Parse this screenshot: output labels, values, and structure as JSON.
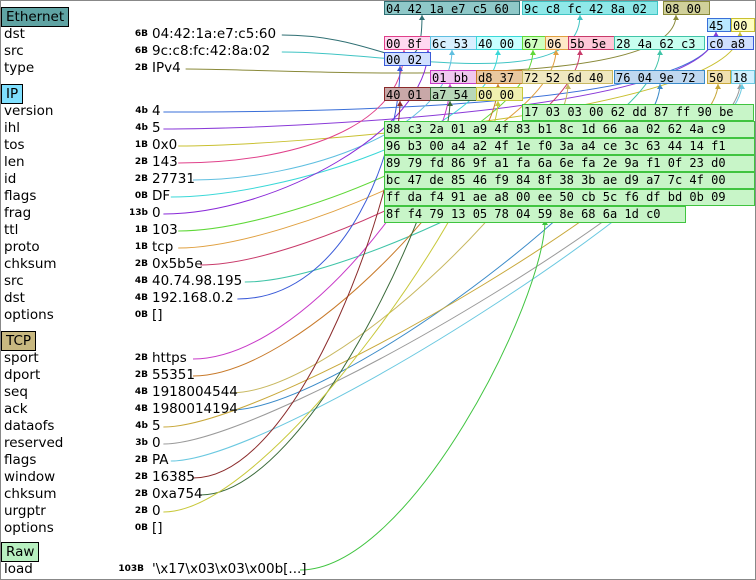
{
  "layers": [
    {
      "name": "Ethernet",
      "color": "#5fa3a3",
      "fields": [
        {
          "name": "dst",
          "size": "6B",
          "value": "04:42:1a:e7:c5:60",
          "color": "#2f6f73",
          "hex": "04 42 1a e7 c5 60"
        },
        {
          "name": "src",
          "size": "6B",
          "value": "9c:c8:fc:42:8a:02",
          "color": "#40c4c4",
          "hex": "9c c8 fc 42 8a 02"
        },
        {
          "name": "type",
          "size": "2B",
          "value": "IPv4",
          "color": "#8a8a3a",
          "hex": "08 00"
        }
      ]
    },
    {
      "name": "IP",
      "color": "#7fe0ff",
      "fields": [
        {
          "name": "version",
          "size": "4b",
          "value": "4",
          "color": "#3a6fd8",
          "hex": "45"
        },
        {
          "name": "ihl",
          "size": "4b",
          "value": "5",
          "color": "#8a3ad8",
          "hex": ""
        },
        {
          "name": "tos",
          "size": "1B",
          "value": "0x0",
          "color": "#c9c030",
          "hex": "00"
        },
        {
          "name": "len",
          "size": "2B",
          "value": "143",
          "color": "#e0408a",
          "hex": "00 8f"
        },
        {
          "name": "id",
          "size": "2B",
          "value": "27731",
          "color": "#5fbfe0",
          "hex": "6c 53"
        },
        {
          "name": "flags",
          "size": "0B",
          "value": "DF",
          "color": "#3ad8d8",
          "hex": "40 00"
        },
        {
          "name": "frag",
          "size": "13b",
          "value": "0",
          "color": "#8a2ad8",
          "hex": ""
        },
        {
          "name": "ttl",
          "size": "1B",
          "value": "103",
          "color": "#5fd838",
          "hex": "67"
        },
        {
          "name": "proto",
          "size": "1B",
          "value": "tcp",
          "color": "#e0a040",
          "hex": "06"
        },
        {
          "name": "chksum",
          "size": "2B",
          "value": "0x5b5e",
          "color": "#c83a6a",
          "hex": "5b 5e"
        },
        {
          "name": "src",
          "size": "4B",
          "value": "40.74.98.195",
          "color": "#40c4a8",
          "hex": "28 4a 62 c3"
        },
        {
          "name": "dst",
          "size": "4B",
          "value": "192.168.0.2",
          "color": "#3a5ad8",
          "hex": "c0 a8 00 02"
        },
        {
          "name": "options",
          "size": "0B",
          "value": "[]",
          "color": "#000000",
          "hex": ""
        }
      ]
    },
    {
      "name": "TCP",
      "color": "#c8b880",
      "fields": [
        {
          "name": "sport",
          "size": "2B",
          "value": "https",
          "color": "#c83ac8",
          "hex": "01 bb"
        },
        {
          "name": "dport",
          "size": "2B",
          "value": "55351",
          "color": "#c87a2a",
          "hex": "d8 37"
        },
        {
          "name": "seq",
          "size": "4B",
          "value": "1918004544",
          "color": "#c8b860",
          "hex": "72 52 6d 40"
        },
        {
          "name": "ack",
          "size": "4B",
          "value": "1980014194",
          "color": "#3a8ac8",
          "hex": "76 04 9e 72"
        },
        {
          "name": "dataofs",
          "size": "4b",
          "value": "5",
          "color": "#c8a83a",
          "hex": "50"
        },
        {
          "name": "reserved",
          "size": "3b",
          "value": "0",
          "color": "#9a9a9a",
          "hex": ""
        },
        {
          "name": "flags",
          "size": "2B",
          "value": "PA",
          "color": "#6ac8e0",
          "hex": "18"
        },
        {
          "name": "window",
          "size": "2B",
          "value": "16385",
          "color": "#8a2a2a",
          "hex": "40 01"
        },
        {
          "name": "chksum",
          "size": "2B",
          "value": "0xa754",
          "color": "#3a6a3a",
          "hex": "a7 54"
        },
        {
          "name": "urgptr",
          "size": "2B",
          "value": "0",
          "color": "#c8c83a",
          "hex": "00 00"
        },
        {
          "name": "options",
          "size": "0B",
          "value": "[]",
          "color": "#000000",
          "hex": ""
        }
      ]
    },
    {
      "name": "Raw",
      "color": "#b8f0c0",
      "fields": [
        {
          "name": "load",
          "size": "103B",
          "value": "'\\x17\\x03\\x03\\x00b[...]",
          "color": "#40c440",
          "hex": ""
        }
      ]
    }
  ],
  "hex": {
    "row0": [
      "04 42 1a e7 c5 60",
      "9c c8 fc 42 8a 02",
      "08 00"
    ],
    "row1": [
      "45",
      "00"
    ],
    "row2": [
      "00 8f",
      "6c 53",
      "40 00",
      "67",
      "06",
      "5b 5e",
      "28 4a 62 c3",
      "c0 a8"
    ],
    "row3": [
      "00 02"
    ],
    "row4": [
      "01 bb",
      "d8 37",
      "72 52 6d 40",
      "76 04 9e 72",
      "50",
      "18"
    ],
    "row5": [
      "40 01",
      "a7 54",
      "00 00"
    ],
    "payload": [
      "17 03 03 00 62 dd 87 ff 90 be",
      "88 c3 2a 01 a9 4f 83 b1 8c 1d 66 aa 02 62 4a c9",
      "96 b3 00 a4 a2 4f 1e f0 3a a4 ce 3c 63 44 14 f1",
      "89 79 fd 86 9f a1 fa 6a 6e fa 2e 9a f1 0f 23 d0",
      "bc 47 de 85 46 f9 84 8f 38 3b ae d9 a7 7c 4f 00",
      "ff da f4 91 ae a8 00 ee 50 cb 5c f6 df bd 0b 09",
      "8f f4 79 13 05 78 04 59 8e 68 6a 1d c0"
    ]
  }
}
